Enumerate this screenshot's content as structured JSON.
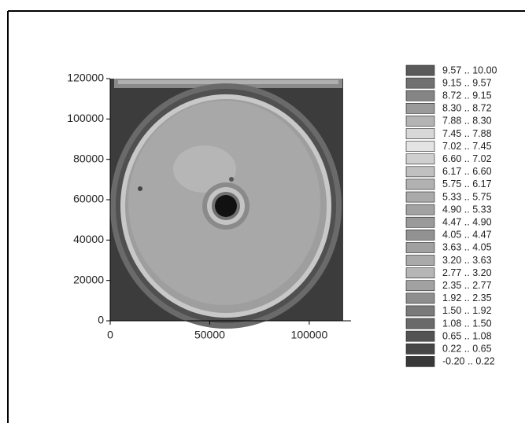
{
  "chart_data": {
    "type": "contour",
    "xlim": [
      0,
      121000
    ],
    "xticks": [
      0,
      50000,
      100000
    ],
    "ylim": [
      0,
      120000
    ],
    "yticks": [
      0,
      20000,
      40000,
      60000,
      80000,
      100000,
      120000
    ],
    "legend": [
      {
        "label": "9.57 .. 10.00",
        "color": "#5a5a5a"
      },
      {
        "label": "9.15 .. 9.57",
        "color": "#707070"
      },
      {
        "label": "8.72 .. 9.15",
        "color": "#858585"
      },
      {
        "label": "8.30 .. 8.72",
        "color": "#9a9a9a"
      },
      {
        "label": "7.88 .. 8.30",
        "color": "#b4b4b4"
      },
      {
        "label": "7.45 .. 7.88",
        "color": "#d8d8d8"
      },
      {
        "label": "7.02 .. 7.45",
        "color": "#e4e4e4"
      },
      {
        "label": "6.60 .. 7.02",
        "color": "#cfcfcf"
      },
      {
        "label": "6.17 .. 6.60",
        "color": "#c0c0c0"
      },
      {
        "label": "5.75 .. 6.17",
        "color": "#b2b2b2"
      },
      {
        "label": "5.33 .. 5.75",
        "color": "#aaaaaa"
      },
      {
        "label": "4.90 .. 5.33",
        "color": "#a2a2a2"
      },
      {
        "label": "4.47 .. 4.90",
        "color": "#9a9a9a"
      },
      {
        "label": "4.05 .. 4.47",
        "color": "#929292"
      },
      {
        "label": "3.63 .. 4.05",
        "color": "#a0a0a0"
      },
      {
        "label": "3.20 .. 3.63",
        "color": "#aaaaaa"
      },
      {
        "label": "2.77 .. 3.20",
        "color": "#b6b6b6"
      },
      {
        "label": "2.35 .. 2.77",
        "color": "#a2a2a2"
      },
      {
        "label": "1.92 .. 2.35",
        "color": "#8e8e8e"
      },
      {
        "label": "1.50 .. 1.92",
        "color": "#7a7a7a"
      },
      {
        "label": "1.08 .. 1.50",
        "color": "#6a6a6a"
      },
      {
        "label": "0.65 .. 1.08",
        "color": "#535353"
      },
      {
        "label": "0.22 .. 0.65",
        "color": "#464646"
      },
      {
        "label": "-0.20 .. 0.22",
        "color": "#383838"
      }
    ]
  }
}
